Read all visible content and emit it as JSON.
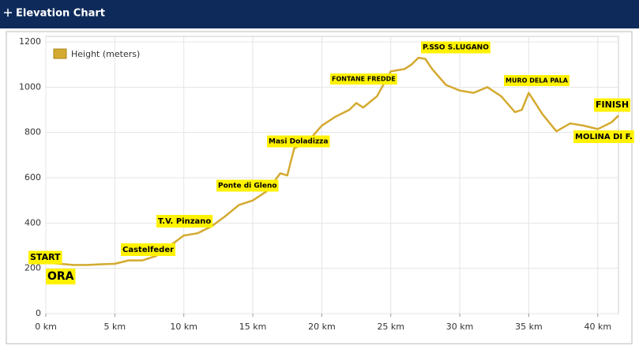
{
  "chart_data": {
    "type": "line",
    "title": "Elevation Chart",
    "x": [
      0,
      1,
      2,
      3,
      4,
      5,
      6,
      7,
      8,
      9,
      10,
      11,
      12,
      13,
      14,
      15,
      16,
      17,
      17.5,
      18,
      19,
      20,
      21,
      22,
      22.5,
      23,
      24,
      25,
      26,
      26.5,
      27,
      27.5,
      28,
      29,
      30,
      31,
      32,
      33,
      34,
      34.5,
      35,
      36,
      37,
      38,
      39,
      40,
      41,
      41.5
    ],
    "series": [
      {
        "name": "Height (meters)",
        "color": "#d4aa30",
        "values": [
          225,
          220,
          215,
          215,
          218,
          220,
          235,
          235,
          255,
          300,
          345,
          355,
          385,
          430,
          480,
          500,
          540,
          620,
          610,
          730,
          760,
          830,
          870,
          900,
          930,
          910,
          960,
          1070,
          1080,
          1100,
          1130,
          1125,
          1080,
          1010,
          985,
          975,
          1000,
          960,
          890,
          900,
          975,
          880,
          805,
          840,
          830,
          815,
          845,
          875
        ]
      }
    ],
    "xlim": [
      0,
      41.5
    ],
    "xticks": [
      {
        "value": 0,
        "label": "0 km"
      },
      {
        "value": 5,
        "label": "5 km"
      },
      {
        "value": 10,
        "label": "10 km"
      },
      {
        "value": 15,
        "label": "15 km"
      },
      {
        "value": 20,
        "label": "20 km"
      },
      {
        "value": 25,
        "label": "25 km"
      },
      {
        "value": 30,
        "label": "30 km"
      },
      {
        "value": 35,
        "label": "35 km"
      },
      {
        "value": 40,
        "label": "40 km"
      }
    ],
    "ylim": [
      0,
      1200
    ],
    "yticks": [
      0,
      200,
      400,
      600,
      800,
      1000,
      1200
    ],
    "grid": true,
    "legend": "top-left",
    "annotations": [
      "START",
      "ORA",
      "Castelfeder",
      "T.V. Pinzano",
      "Ponte di Gleno",
      "Masi Doladizza",
      "FONTANE FREDDE",
      "P.SSO S.LUGANO",
      "MURO DELA PALA",
      "FINISH",
      "MOLINA DI F."
    ]
  }
}
